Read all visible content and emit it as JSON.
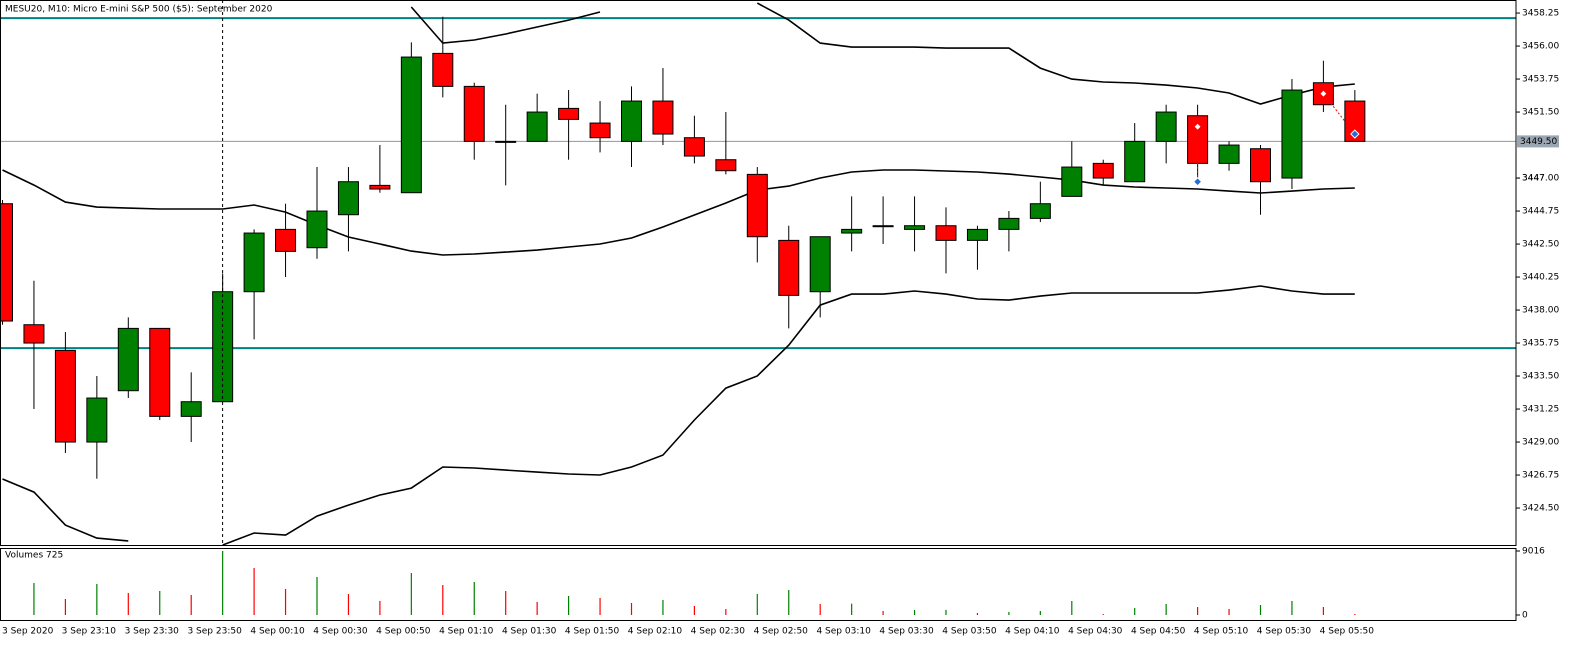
{
  "chart_data": {
    "type": "candlestick",
    "title": "MESU20, M10:  Micro E-mini S&P 500 ($5): September 2020",
    "categories": [
      "3 Sep 2020",
      null,
      null,
      "3 Sep 23:10",
      null,
      "3 Sep 23:30",
      null,
      "3 Sep 23:50",
      null,
      "4 Sep 00:10",
      null,
      "4 Sep 00:30",
      null,
      "4 Sep 00:50",
      null,
      "4 Sep 01:10",
      null,
      "4 Sep 01:30",
      null,
      "4 Sep 01:50",
      null,
      "4 Sep 02:10",
      null,
      "4 Sep 02:30",
      null,
      "4 Sep 02:50",
      null,
      "4 Sep 03:10",
      null,
      "4 Sep 03:30",
      null,
      "4 Sep 03:50",
      null,
      "4 Sep 04:10",
      null,
      "4 Sep 04:30",
      null,
      "4 Sep 04:50",
      null,
      "4 Sep 05:10",
      null,
      "4 Sep 05:30",
      null,
      "4 Sep 05:50"
    ],
    "open": [
      3445.25,
      3437.0,
      3435.25,
      3429.0,
      3432.5,
      3436.75,
      3430.75,
      3431.75,
      3439.25,
      3443.5,
      3442.25,
      3444.5,
      3446.5,
      3446.0,
      3455.5,
      3453.25,
      3449.5,
      3449.5,
      3451.75,
      3450.75,
      3449.5,
      3452.25,
      3449.75,
      3448.25,
      3447.25,
      3442.75,
      3439.25,
      3443.25,
      3443.75,
      3443.5,
      3443.75,
      3442.75,
      3443.5,
      3444.25,
      3445.75,
      3448.0,
      3446.75,
      3449.5,
      3451.25,
      3448.0,
      3449.0,
      3447.0,
      3453.5,
      3452.25
    ],
    "high": [
      3445.5,
      3440.0,
      3436.5,
      3433.5,
      3437.5,
      3436.75,
      3433.75,
      3440.5,
      3443.5,
      3445.25,
      3447.75,
      3447.75,
      3449.25,
      3456.25,
      3458.0,
      3453.5,
      3452.0,
      3452.75,
      3453.0,
      3452.25,
      3453.25,
      3454.5,
      3451.25,
      3451.5,
      3447.75,
      3443.75,
      3443.0,
      3445.75,
      3445.75,
      3445.75,
      3445.0,
      3443.75,
      3444.75,
      3446.75,
      3449.5,
      3448.25,
      3450.75,
      3452.0,
      3452.0,
      3449.5,
      3449.25,
      3453.75,
      3455.0,
      3453.0
    ],
    "low": [
      3437.0,
      3431.25,
      3428.25,
      3426.5,
      3432.0,
      3430.5,
      3429.0,
      3431.75,
      3436.0,
      3440.25,
      3441.5,
      3442.0,
      3446.0,
      3446.0,
      3452.5,
      3448.25,
      3446.5,
      3449.5,
      3448.25,
      3448.75,
      3447.75,
      3449.25,
      3448.0,
      3447.25,
      3441.25,
      3436.75,
      3437.5,
      3442.0,
      3442.5,
      3442.0,
      3440.5,
      3440.75,
      3442.0,
      3444.0,
      3445.75,
      3446.5,
      3446.75,
      3448.0,
      3447.0,
      3447.5,
      3444.5,
      3446.25,
      3451.5,
      3449.5
    ],
    "close": [
      3437.25,
      3435.75,
      3429.0,
      3432.0,
      3436.75,
      3430.75,
      3431.75,
      3439.25,
      3443.25,
      3442.0,
      3444.75,
      3446.75,
      3446.25,
      3455.25,
      3453.25,
      3449.5,
      3449.5,
      3451.5,
      3451.0,
      3449.75,
      3452.25,
      3450.0,
      3448.5,
      3447.5,
      3443.0,
      3439.0,
      3443.0,
      3443.5,
      3443.75,
      3443.75,
      3442.75,
      3443.5,
      3444.25,
      3445.25,
      3447.75,
      3447.0,
      3449.5,
      3451.5,
      3448.0,
      3449.25,
      3446.75,
      3453.0,
      3452.0,
      3449.5
    ],
    "up_color": "#008000",
    "down_color": "#ff0000",
    "bands": [
      {
        "color": "#000000",
        "values": [
          null,
          null,
          null,
          null,
          null,
          null,
          null,
          null,
          null,
          null,
          null,
          null,
          null,
          3458.66,
          3456.2,
          3456.41,
          3456.82,
          3457.3,
          3457.77,
          3458.32,
          null,
          null,
          null,
          null,
          3458.93,
          3457.77,
          3456.2,
          3455.93,
          3455.93,
          3455.93,
          3455.86,
          3455.86,
          3455.86,
          3454.5,
          3453.75,
          3453.55,
          3453.48,
          3453.34,
          3453.14,
          3452.8,
          3452.05,
          3452.66,
          3453.2,
          3453.41
        ]
      },
      {
        "color": "#000000",
        "values": [
          3447.55,
          3446.52,
          3445.36,
          3445.02,
          3444.95,
          3444.89,
          3444.89,
          3444.89,
          3445.16,
          3444.68,
          3443.8,
          3442.98,
          3442.5,
          3442.02,
          3441.75,
          3441.82,
          3441.95,
          3442.09,
          3442.3,
          3442.5,
          3442.91,
          3443.66,
          3444.48,
          3445.3,
          3446.18,
          3446.45,
          3447.0,
          3447.41,
          3447.55,
          3447.55,
          3447.48,
          3447.41,
          3447.27,
          3447.07,
          3446.86,
          3446.52,
          3446.39,
          3446.32,
          3446.25,
          3446.11,
          3445.98,
          3446.11,
          3446.25,
          3446.32
        ]
      },
      {
        "color": "#000000",
        "values": [
          3426.48,
          3425.59,
          3423.34,
          3422.45,
          3422.25,
          null,
          null,
          3421.98,
          3422.8,
          3422.66,
          3423.95,
          3424.7,
          3425.39,
          3425.86,
          3427.3,
          3427.23,
          3427.09,
          3426.95,
          3426.82,
          3426.75,
          3427.3,
          3428.11,
          3430.5,
          3432.68,
          3433.5,
          3435.61,
          3438.34,
          3439.09,
          3439.09,
          3439.3,
          3439.09,
          3438.75,
          3438.68,
          3438.95,
          3439.16,
          3439.16,
          3439.16,
          3439.16,
          3439.16,
          3439.36,
          3439.64,
          3439.3,
          3439.09,
          3439.09
        ]
      }
    ],
    "levels": [
      {
        "value": 3457.9,
        "color": "#008080"
      },
      {
        "value": 3435.4,
        "color": "#008080"
      }
    ],
    "current_price": {
      "value": 3449.5,
      "label": "3449.50"
    },
    "current_price_color": "#8a9aa8",
    "trades": [
      {
        "entry": 38,
        "entry_price": 3450.5,
        "exit": 38,
        "exit_price": 3446.75
      },
      {
        "entry": 42,
        "entry_price": 3452.75,
        "exit": 43,
        "exit_price": 3450.0
      }
    ],
    "trade_color": "#ff0000",
    "exit_color": "#1e6fd9",
    "ylim": [
      3421.98,
      3459.14
    ],
    "yticks": [
      3458.25,
      {
        "value": 3456.0,
        "label": "3456.00"
      },
      3453.75,
      {
        "value": 3451.5,
        "label": "3451.50"
      },
      3447,
      {
        "value": 3447.0,
        "label": "3447.00"
      },
      3444.75,
      {
        "value": 3442.5,
        "label": "3442.50"
      },
      3440.25,
      {
        "value": 3438.0,
        "label": "3438.00"
      },
      3435.75,
      {
        "value": 3433.5,
        "label": "3433.50"
      },
      3431.25,
      {
        "value": 3429.0,
        "label": "3429.00"
      },
      3426.75,
      {
        "value": 3424.5,
        "label": "3424.50"
      }
    ],
    "volume_title": "Volumes 725",
    "volumes": [
      null,
      4508,
      2254,
      4368,
      3100,
      3381,
      2818,
      9016,
      6622,
      3663,
      5354,
      2959,
      1972,
      5918,
      4227,
      4649,
      3381,
      1831,
      2677,
      2395,
      1690,
      2113,
      1268,
      845,
      2959,
      3522,
      1550,
      1600,
      564,
      704,
      730,
      282,
      423,
      564,
      1972,
      141,
      986,
      1550,
      1127,
      845,
      1409,
      1972,
      1127,
      141
    ],
    "volume_up_color": "#008000",
    "volume_down_color": "#ff0000",
    "volume_ylim": [
      -704,
      9440
    ],
    "volume_yticks": [
      9016,
      0
    ]
  }
}
